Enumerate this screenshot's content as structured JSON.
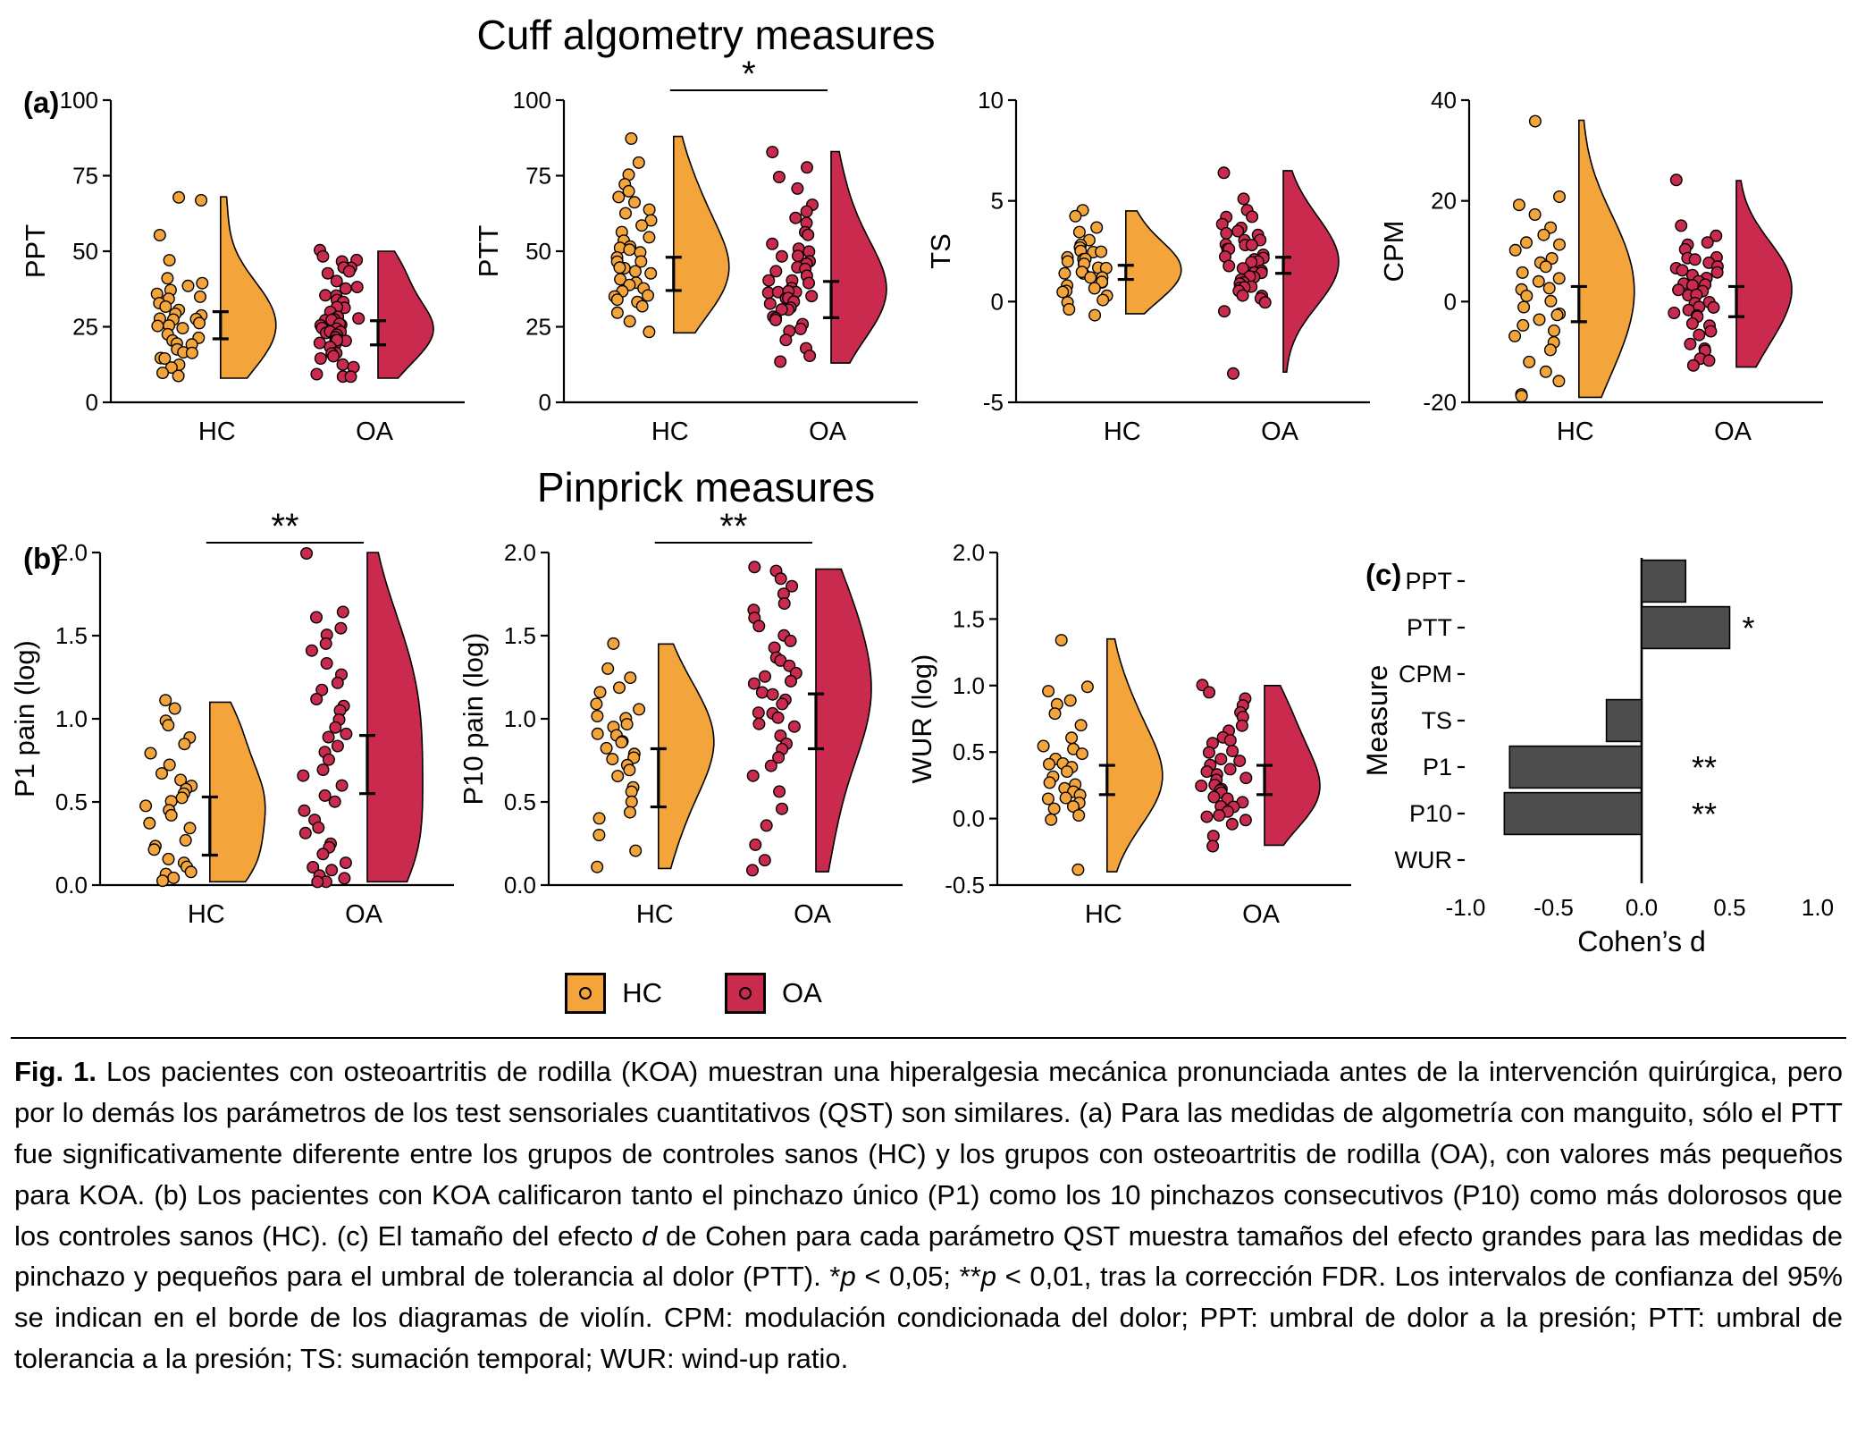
{
  "page": {
    "titles": {
      "cuff": "Cuff algometry measures",
      "pinprick": "Pinprick measures"
    },
    "panel_labels": {
      "a": "(a)",
      "b": "(b)",
      "c": "(c)"
    }
  },
  "colors": {
    "hc": "#F3A53C",
    "oa": "#CB2A4F",
    "bar": "#4D4D4D",
    "axis": "#000000"
  },
  "legend": {
    "items": [
      {
        "key": "hc",
        "label": "HC"
      },
      {
        "key": "oa",
        "label": "OA"
      }
    ]
  },
  "chart_data": [
    {
      "id": "ppt",
      "type": "raincloud",
      "row": "a",
      "ylabel": "PPT",
      "ylim": [
        0,
        100
      ],
      "yticks": [
        0,
        25,
        50,
        75,
        100
      ],
      "ytick_labels": [
        "0",
        "25",
        "50",
        "75",
        "100"
      ],
      "categories": [
        "HC",
        "OA"
      ],
      "significance": null,
      "series": [
        {
          "name": "HC",
          "color": "hc",
          "ci": [
            21,
            30
          ],
          "points": [
            68,
            67,
            55,
            47,
            41,
            39,
            38,
            37,
            36,
            35,
            34,
            33,
            32,
            31,
            30,
            29,
            28,
            28,
            27,
            26,
            25,
            25,
            24,
            23,
            22,
            21,
            20,
            19,
            18,
            17,
            16,
            15,
            14,
            13,
            12,
            10,
            8
          ]
        },
        {
          "name": "OA",
          "color": "oa",
          "ci": [
            19,
            27
          ],
          "points": [
            50,
            48,
            47,
            46,
            45,
            44,
            43,
            42,
            40,
            38,
            37,
            36,
            35,
            34,
            33,
            32,
            31,
            30,
            29,
            28,
            28,
            27,
            27,
            26,
            26,
            25,
            25,
            24,
            24,
            23,
            23,
            22,
            22,
            21,
            21,
            20,
            20,
            19,
            18,
            17,
            16,
            15,
            14,
            13,
            12,
            10,
            9,
            8
          ]
        }
      ]
    },
    {
      "id": "ptt",
      "type": "raincloud",
      "row": "a",
      "ylabel": "PTT",
      "ylim": [
        0,
        100
      ],
      "yticks": [
        0,
        25,
        50,
        75,
        100
      ],
      "ytick_labels": [
        "0",
        "25",
        "50",
        "75",
        "100"
      ],
      "categories": [
        "HC",
        "OA"
      ],
      "significance": "*",
      "series": [
        {
          "name": "HC",
          "color": "hc",
          "ci": [
            37,
            48
          ],
          "points": [
            88,
            80,
            76,
            72,
            70,
            68,
            66,
            64,
            62,
            60,
            58,
            56,
            54,
            53,
            52,
            51,
            50,
            49,
            48,
            47,
            46,
            45,
            44,
            43,
            42,
            41,
            40,
            39,
            38,
            37,
            36,
            35,
            34,
            33,
            32,
            30,
            27,
            23
          ]
        },
        {
          "name": "OA",
          "color": "oa",
          "ci": [
            28,
            40
          ],
          "points": [
            83,
            78,
            74,
            70,
            66,
            63,
            61,
            59,
            57,
            55,
            53,
            51,
            50,
            49,
            48,
            47,
            46,
            45,
            44,
            43,
            42,
            41,
            40,
            39,
            38,
            37,
            37,
            36,
            36,
            35,
            35,
            34,
            34,
            33,
            33,
            32,
            31,
            30,
            29,
            28,
            27,
            26,
            25,
            23,
            21,
            18,
            15,
            13
          ]
        }
      ]
    },
    {
      "id": "ts",
      "type": "raincloud",
      "row": "a",
      "ylabel": "TS",
      "ylim": [
        -5,
        10
      ],
      "yticks": [
        -5,
        0,
        5,
        10
      ],
      "ytick_labels": [
        "-5",
        "0",
        "5",
        "10"
      ],
      "categories": [
        "HC",
        "OA"
      ],
      "significance": null,
      "series": [
        {
          "name": "HC",
          "color": "hc",
          "ci": [
            1.1,
            1.8
          ],
          "points": [
            4.5,
            4.2,
            3.7,
            3.4,
            3.1,
            2.9,
            2.7,
            2.6,
            2.5,
            2.4,
            2.3,
            2.2,
            2.1,
            2.0,
            1.9,
            1.8,
            1.7,
            1.6,
            1.5,
            1.4,
            1.3,
            1.2,
            1.1,
            1.0,
            0.9,
            0.8,
            0.7,
            0.6,
            0.5,
            0.3,
            0.1,
            -0.1,
            -0.3,
            -0.6
          ]
        },
        {
          "name": "OA",
          "color": "oa",
          "ci": [
            1.4,
            2.2
          ],
          "points": [
            6.5,
            5.0,
            4.6,
            4.3,
            4.1,
            3.9,
            3.7,
            3.5,
            3.4,
            3.2,
            3.1,
            3.0,
            2.9,
            2.8,
            2.7,
            2.6,
            2.5,
            2.4,
            2.3,
            2.2,
            2.1,
            2.0,
            1.9,
            1.8,
            1.7,
            1.6,
            1.5,
            1.4,
            1.3,
            1.2,
            1.1,
            1.0,
            0.9,
            0.8,
            0.7,
            0.6,
            0.5,
            0.4,
            0.3,
            0.1,
            -0.1,
            -0.4,
            -3.5
          ]
        }
      ]
    },
    {
      "id": "cpm",
      "type": "raincloud",
      "row": "a",
      "ylabel": "CPM",
      "ylim": [
        -20,
        40
      ],
      "yticks": [
        -20,
        0,
        20,
        40
      ],
      "ytick_labels": [
        "-20",
        "0",
        "20",
        "40"
      ],
      "categories": [
        "HC",
        "OA"
      ],
      "significance": null,
      "series": [
        {
          "name": "HC",
          "color": "hc",
          "ci": [
            -4,
            3
          ],
          "points": [
            36,
            21,
            19,
            17,
            15,
            13,
            12,
            11,
            10,
            9,
            8,
            7,
            6,
            5,
            4,
            3,
            2,
            1,
            0,
            -1,
            -2,
            -3,
            -4,
            -5,
            -6,
            -7,
            -8,
            -10,
            -12,
            -14,
            -16,
            -18,
            -19
          ]
        },
        {
          "name": "OA",
          "color": "oa",
          "ci": [
            -3,
            3
          ],
          "points": [
            24,
            15,
            13,
            12,
            11,
            10,
            9,
            9,
            8,
            8,
            7,
            7,
            6,
            6,
            5,
            5,
            4,
            4,
            3,
            3,
            2,
            2,
            1,
            1,
            0,
            0,
            -1,
            -1,
            -2,
            -2,
            -3,
            -3,
            -4,
            -5,
            -6,
            -7,
            -8,
            -9,
            -10,
            -11,
            -12,
            -13
          ]
        }
      ]
    },
    {
      "id": "p1",
      "type": "raincloud",
      "row": "b",
      "ylabel": "P1 pain (log)",
      "ylim": [
        0,
        2
      ],
      "yticks": [
        0,
        0.5,
        1,
        1.5,
        2
      ],
      "ytick_labels": [
        "0.0",
        "0.5",
        "1.0",
        "1.5",
        "2.0"
      ],
      "categories": [
        "HC",
        "OA"
      ],
      "significance": "**",
      "series": [
        {
          "name": "HC",
          "color": "hc",
          "ci": [
            0.18,
            0.53
          ],
          "points": [
            1.1,
            1.05,
            1.0,
            0.95,
            0.9,
            0.85,
            0.78,
            0.72,
            0.68,
            0.64,
            0.6,
            0.57,
            0.54,
            0.52,
            0.5,
            0.48,
            0.45,
            0.42,
            0.38,
            0.33,
            0.28,
            0.24,
            0.2,
            0.16,
            0.13,
            0.1,
            0.08,
            0.06,
            0.04,
            0.02
          ]
        },
        {
          "name": "OA",
          "color": "oa",
          "ci": [
            0.55,
            0.9
          ],
          "points": [
            2.0,
            1.65,
            1.6,
            1.55,
            1.5,
            1.45,
            1.4,
            1.32,
            1.27,
            1.22,
            1.17,
            1.12,
            1.08,
            1.04,
            1.0,
            0.96,
            0.92,
            0.88,
            0.84,
            0.8,
            0.75,
            0.7,
            0.65,
            0.6,
            0.55,
            0.5,
            0.45,
            0.4,
            0.35,
            0.3,
            0.26,
            0.22,
            0.18,
            0.14,
            0.1,
            0.08,
            0.06,
            0.05,
            0.03,
            0.02
          ]
        }
      ]
    },
    {
      "id": "p10",
      "type": "raincloud",
      "row": "b",
      "ylabel": "P10 pain (log)",
      "ylim": [
        0,
        2
      ],
      "yticks": [
        0,
        0.5,
        1,
        1.5,
        2
      ],
      "ytick_labels": [
        "0.0",
        "0.5",
        "1.0",
        "1.5",
        "2.0"
      ],
      "categories": [
        "HC",
        "OA"
      ],
      "significance": "**",
      "series": [
        {
          "name": "HC",
          "color": "hc",
          "ci": [
            0.47,
            0.82
          ],
          "points": [
            1.45,
            1.3,
            1.25,
            1.2,
            1.15,
            1.1,
            1.05,
            1.02,
            1.0,
            0.97,
            0.95,
            0.92,
            0.9,
            0.87,
            0.85,
            0.82,
            0.8,
            0.77,
            0.75,
            0.72,
            0.7,
            0.65,
            0.6,
            0.55,
            0.5,
            0.45,
            0.4,
            0.3,
            0.2,
            0.1
          ]
        },
        {
          "name": "OA",
          "color": "oa",
          "ci": [
            0.82,
            1.15
          ],
          "points": [
            1.9,
            1.88,
            1.85,
            1.8,
            1.75,
            1.7,
            1.65,
            1.6,
            1.55,
            1.5,
            1.46,
            1.42,
            1.38,
            1.35,
            1.32,
            1.28,
            1.25,
            1.22,
            1.2,
            1.17,
            1.14,
            1.11,
            1.08,
            1.05,
            1.02,
            1.0,
            0.97,
            0.94,
            0.9,
            0.86,
            0.82,
            0.78,
            0.72,
            0.65,
            0.55,
            0.45,
            0.35,
            0.25,
            0.15,
            0.08
          ]
        }
      ]
    },
    {
      "id": "wur",
      "type": "raincloud",
      "row": "b",
      "ylabel": "WUR (log)",
      "ylim": [
        -0.5,
        2
      ],
      "yticks": [
        -0.5,
        0,
        0.5,
        1,
        1.5,
        2
      ],
      "ytick_labels": [
        "-0.5",
        "0.0",
        "0.5",
        "1.0",
        "1.5",
        "2.0"
      ],
      "categories": [
        "HC",
        "OA"
      ],
      "significance": null,
      "series": [
        {
          "name": "HC",
          "color": "hc",
          "ci": [
            0.18,
            0.4
          ],
          "points": [
            1.35,
            1.0,
            0.95,
            0.9,
            0.85,
            0.78,
            0.7,
            0.62,
            0.56,
            0.52,
            0.48,
            0.45,
            0.42,
            0.4,
            0.37,
            0.34,
            0.31,
            0.28,
            0.26,
            0.24,
            0.21,
            0.19,
            0.17,
            0.15,
            0.12,
            0.1,
            0.07,
            0.03,
            -0.02,
            -0.4
          ]
        },
        {
          "name": "OA",
          "color": "oa",
          "ci": [
            0.18,
            0.4
          ],
          "points": [
            1.0,
            0.95,
            0.9,
            0.85,
            0.8,
            0.75,
            0.7,
            0.66,
            0.62,
            0.58,
            0.55,
            0.52,
            0.49,
            0.46,
            0.43,
            0.4,
            0.38,
            0.35,
            0.33,
            0.3,
            0.28,
            0.26,
            0.24,
            0.22,
            0.2,
            0.18,
            0.16,
            0.14,
            0.12,
            0.1,
            0.08,
            0.06,
            0.04,
            0.02,
            0.0,
            -0.05,
            -0.12,
            -0.2
          ]
        }
      ]
    },
    {
      "id": "cohend",
      "type": "bar",
      "row": "c",
      "orientation": "horizontal",
      "xlabel": "Cohen’s d",
      "ylabel": "Measure",
      "xlim": [
        -1,
        1
      ],
      "xticks": [
        -1,
        -0.5,
        0,
        0.5,
        1
      ],
      "xtick_labels": [
        "-1.0",
        "-0.5",
        "0.0",
        "0.5",
        "1.0"
      ],
      "categories": [
        "PPT",
        "PTT",
        "CPM",
        "TS",
        "P1",
        "P10",
        "WUR"
      ],
      "values": [
        0.25,
        0.5,
        0.02,
        -0.2,
        -0.75,
        -0.78,
        0.02
      ],
      "significance": [
        "",
        "*",
        "",
        "",
        "**",
        "**",
        ""
      ]
    }
  ],
  "caption": {
    "label": "Fig. 1.",
    "segments": [
      {
        "t": " Los pacientes con osteoartritis de rodilla (KOA) muestran una hiperalgesia mecánica pronunciada antes de la intervención quirúrgica, pero por lo demás los parámetros de los test sensoriales cuantitativos (QST) son similares. (a) Para las medidas de algometría con manguito, sólo el PTT fue significativamente diferente entre los grupos de controles sanos (HC) y los grupos con osteoartritis de rodilla (OA), con valores más pequeños para KOA. (b) Los pacientes con KOA calificaron tanto el pinchazo único (P1) como los 10 pinchazos consecutivos (P10) como más dolorosos que los controles sanos (HC). (c) El tamaño del efecto ",
        "i": false
      },
      {
        "t": "d",
        "i": true
      },
      {
        "t": " de Cohen para cada parámetro QST muestra tamaños del efecto grandes para las medidas de pinchazo y pequeños para el umbral de tolerancia al dolor (PTT). *",
        "i": false
      },
      {
        "t": "p",
        "i": true
      },
      {
        "t": " < 0,05; **",
        "i": false
      },
      {
        "t": "p",
        "i": true
      },
      {
        "t": " < 0,01, tras la corrección FDR. Los intervalos de confianza del 95% se indican en el borde de los diagramas de violín. CPM: modulación condicionada del dolor; PPT: umbral de dolor a la presión; PTT: umbral de tolerancia a la presión; TS: sumación temporal; WUR: wind-up ratio.",
        "i": false
      }
    ]
  }
}
